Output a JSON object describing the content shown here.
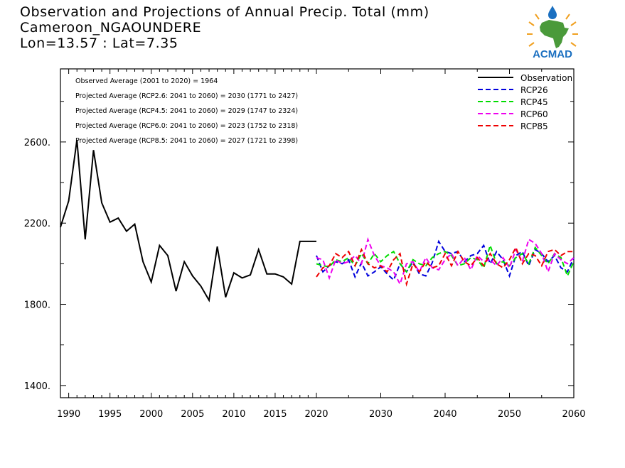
{
  "header": {
    "title": "Observation and Projections of Annual Precip. Total (mm)",
    "location": "Cameroon_NGAOUNDERE",
    "coords": "Lon=13.57 : Lat=7.35"
  },
  "logo": {
    "text": "ACMAD",
    "icon": "africa-map-logo",
    "colors": {
      "map": "#4a9a3a",
      "drop": "#1a6fc0",
      "rays": "#f0a020",
      "text": "#1a6fc0"
    }
  },
  "chart_data": {
    "type": "line",
    "title": "Observation and Projections of Annual Precip. Total (mm)",
    "xlabel": "",
    "ylabel": "",
    "xlim": [
      1989,
      2060
    ],
    "ylim": [
      1340,
      2960
    ],
    "x_ticks_left": [
      1990,
      1995,
      2000,
      2005,
      2010,
      2015,
      2020
    ],
    "x_ticks_right": [
      2030,
      2040,
      2050,
      2060
    ],
    "y_ticks": [
      1400,
      1800,
      2200,
      2600
    ],
    "y_tick_labels": [
      "1400.",
      "1800.",
      "2200.",
      "2600."
    ],
    "grid": false,
    "legend_position": "top-right",
    "annotations": [
      "Observed Average (2001 to 2020) = 1964",
      "Projected Average (RCP2.6: 2041 to 2060) = 2030 (1771 to 2427)",
      "Projected Average (RCP4.5: 2041 to 2060) = 2029 (1747 to 2324)",
      "Projected Average (RCP6.0: 2041 to 2060) = 2023 (1752 to 2318)",
      "Projected Average (RCP8.5: 2041 to 2060) = 2027 (1721 to 2398)"
    ],
    "series": [
      {
        "name": "Observation",
        "color": "#000000",
        "dash": "solid",
        "x": [
          1989,
          1990,
          1991,
          1992,
          1993,
          1994,
          1995,
          1996,
          1997,
          1998,
          1999,
          2000,
          2001,
          2002,
          2003,
          2004,
          2005,
          2006,
          2007,
          2008,
          2009,
          2010,
          2011,
          2012,
          2013,
          2014,
          2015,
          2016,
          2017,
          2018,
          2019,
          2020
        ],
        "y": [
          2180,
          2310,
          2610,
          2120,
          2560,
          2300,
          2205,
          2225,
          2160,
          2195,
          2010,
          1910,
          2090,
          2040,
          1865,
          2010,
          1940,
          1890,
          1820,
          2085,
          1835,
          1955,
          1930,
          1945,
          2070,
          1950,
          1950,
          1935,
          1900,
          2110,
          2110,
          2110
        ]
      },
      {
        "name": "RCP26",
        "color": "#0000dd",
        "dash": "dashed",
        "x": [
          2020,
          2021,
          2022,
          2023,
          2024,
          2025,
          2026,
          2027,
          2028,
          2029,
          2030,
          2031,
          2032,
          2033,
          2034,
          2035,
          2036,
          2037,
          2038,
          2039,
          2040,
          2041,
          2042,
          2043,
          2044,
          2045,
          2046,
          2047,
          2048,
          2049,
          2050,
          2051,
          2052,
          2053,
          2054,
          2055,
          2056,
          2057,
          2058,
          2059,
          2060
        ],
        "y": [
          2040,
          1960,
          1990,
          2010,
          2000,
          2020,
          1935,
          2005,
          1940,
          1960,
          1985,
          1950,
          1920,
          2000,
          1960,
          2010,
          1950,
          1940,
          2005,
          2110,
          2060,
          2050,
          2060,
          2010,
          2040,
          2050,
          2090,
          2000,
          2060,
          2020,
          1940,
          2040,
          2060,
          1990,
          2070,
          2050,
          2010,
          2040,
          1980,
          1960,
          2030
        ]
      },
      {
        "name": "RCP45",
        "color": "#00dd00",
        "dash": "dashed",
        "x": [
          2020,
          2021,
          2022,
          2023,
          2024,
          2025,
          2026,
          2027,
          2028,
          2029,
          2030,
          2031,
          2032,
          2033,
          2034,
          2035,
          2036,
          2037,
          2038,
          2039,
          2040,
          2041,
          2042,
          2043,
          2044,
          2045,
          2046,
          2047,
          2048,
          2049,
          2050,
          2051,
          2052,
          2053,
          2054,
          2055,
          2056,
          2057,
          2058,
          2059,
          2060
        ],
        "y": [
          2000,
          1990,
          1985,
          2020,
          2010,
          2030,
          1990,
          2050,
          2000,
          2050,
          2010,
          2040,
          2060,
          2000,
          1960,
          2020,
          2000,
          1990,
          2030,
          2050,
          2060,
          2040,
          1990,
          2000,
          2030,
          2020,
          1980,
          2090,
          2000,
          2010,
          1990,
          2030,
          2050,
          2000,
          2080,
          2040,
          2000,
          2050,
          2030,
          1940,
          2010
        ]
      },
      {
        "name": "RCP60",
        "color": "#ee00ee",
        "dash": "dashed",
        "x": [
          2020,
          2021,
          2022,
          2023,
          2024,
          2025,
          2026,
          2027,
          2028,
          2029,
          2030,
          2031,
          2032,
          2033,
          2034,
          2035,
          2036,
          2037,
          2038,
          2039,
          2040,
          2041,
          2042,
          2043,
          2044,
          2045,
          2046,
          2047,
          2048,
          2049,
          2050,
          2051,
          2052,
          2053,
          2054,
          2055,
          2056,
          2057,
          2058,
          2059,
          2060
        ],
        "y": [
          2030,
          2020,
          1930,
          2020,
          2000,
          2010,
          2040,
          2000,
          2120,
          2040,
          1990,
          1980,
          1960,
          1900,
          2000,
          2010,
          1960,
          2030,
          1980,
          1970,
          2020,
          2050,
          1990,
          2030,
          1970,
          2040,
          2010,
          2020,
          1990,
          2030,
          1980,
          2070,
          2010,
          2120,
          2100,
          2050,
          1960,
          2050,
          2020,
          2000,
          2030
        ]
      },
      {
        "name": "RCP85",
        "color": "#ee0000",
        "dash": "dashed",
        "x": [
          2020,
          2021,
          2022,
          2023,
          2024,
          2025,
          2026,
          2027,
          2028,
          2029,
          2030,
          2031,
          2032,
          2033,
          2034,
          2035,
          2036,
          2037,
          2038,
          2039,
          2040,
          2041,
          2042,
          2043,
          2044,
          2045,
          2046,
          2047,
          2048,
          2049,
          2050,
          2051,
          2052,
          2053,
          2054,
          2055,
          2056,
          2057,
          2058,
          2059,
          2060
        ],
        "y": [
          1935,
          1980,
          1990,
          2050,
          2030,
          2060,
          1990,
          2070,
          2000,
          1980,
          1990,
          1960,
          2020,
          2050,
          1900,
          2000,
          1960,
          2010,
          1980,
          1990,
          2050,
          1990,
          2060,
          2010,
          1990,
          2030,
          1990,
          2050,
          2000,
          1980,
          2020,
          2080,
          2000,
          2050,
          2040,
          1990,
          2060,
          2070,
          2040,
          2060,
          2060
        ]
      }
    ]
  }
}
